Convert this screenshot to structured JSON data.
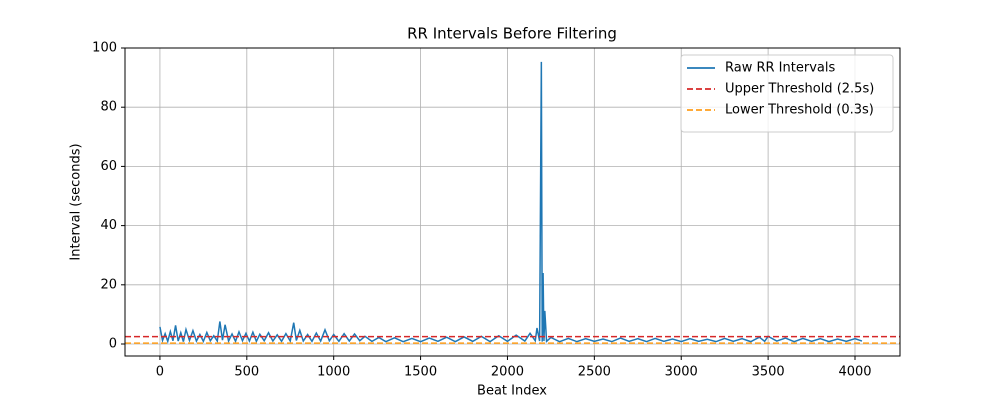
{
  "chart_data": {
    "type": "line",
    "title": "RR Intervals Before Filtering",
    "x_label": "Beat Index",
    "y_label": "Interval (seconds)",
    "x": [
      0,
      15,
      30,
      45,
      60,
      75,
      90,
      105,
      120,
      135,
      150,
      170,
      190,
      210,
      230,
      250,
      270,
      290,
      310,
      330,
      345,
      360,
      375,
      395,
      415,
      435,
      455,
      475,
      495,
      515,
      535,
      555,
      575,
      600,
      625,
      650,
      675,
      700,
      725,
      750,
      770,
      785,
      805,
      825,
      850,
      875,
      900,
      925,
      950,
      975,
      1000,
      1030,
      1060,
      1090,
      1120,
      1150,
      1180,
      1220,
      1260,
      1300,
      1350,
      1400,
      1450,
      1500,
      1550,
      1600,
      1650,
      1700,
      1750,
      1800,
      1850,
      1900,
      1950,
      2000,
      2050,
      2100,
      2130,
      2160,
      2170,
      2185,
      2195,
      2200,
      2205,
      2210,
      2215,
      2225,
      2250,
      2300,
      2350,
      2400,
      2450,
      2500,
      2550,
      2600,
      2650,
      2700,
      2750,
      2800,
      2850,
      2900,
      2950,
      3000,
      3050,
      3100,
      3150,
      3200,
      3250,
      3300,
      3350,
      3400,
      3450,
      3480,
      3500,
      3550,
      3600,
      3650,
      3700,
      3750,
      3800,
      3850,
      3900,
      3950,
      4000,
      4040
    ],
    "series": [
      {
        "name": "Raw RR Intervals",
        "color": "#1f77b4",
        "values": [
          5.8,
          1.2,
          3.5,
          0.9,
          4.2,
          1.1,
          6.3,
          1.0,
          3.8,
          0.8,
          4.9,
          1.2,
          4.5,
          1.0,
          3.2,
          0.9,
          3.9,
          1.1,
          2.8,
          1.0,
          7.6,
          1.3,
          6.5,
          1.0,
          3.4,
          0.9,
          4.1,
          1.1,
          3.6,
          1.0,
          4.0,
          0.9,
          3.3,
          1.1,
          3.8,
          1.0,
          3.1,
          0.9,
          3.5,
          1.0,
          7.2,
          1.2,
          4.6,
          1.0,
          3.2,
          0.9,
          3.7,
          1.0,
          4.8,
          1.1,
          3.2,
          0.9,
          3.5,
          1.0,
          3.4,
          1.1,
          2.6,
          0.9,
          2.2,
          0.8,
          2.1,
          0.8,
          1.9,
          0.8,
          2.0,
          0.9,
          2.3,
          0.8,
          2.4,
          0.9,
          2.6,
          0.8,
          2.8,
          0.9,
          3.0,
          1.0,
          3.6,
          1.1,
          5.4,
          1.0,
          95.3,
          0.8,
          24,
          1.0,
          11.2,
          0.9,
          2.2,
          0.8,
          1.9,
          0.8,
          1.8,
          0.9,
          1.7,
          0.8,
          2.0,
          0.9,
          1.8,
          0.8,
          1.9,
          0.9,
          1.7,
          0.8,
          1.8,
          0.9,
          1.6,
          0.8,
          1.9,
          0.9,
          1.8,
          0.8,
          2.3,
          0.9,
          2.6,
          1.0,
          2.0,
          0.8,
          1.9,
          0.9,
          1.8,
          0.8,
          1.7,
          0.9,
          1.8,
          1.0
        ]
      }
    ],
    "thresholds": [
      {
        "name": "Upper Threshold (2.5s)",
        "color": "#d62728",
        "value": 2.5
      },
      {
        "name": "Lower Threshold (0.3s)",
        "color": "#ff9f1c",
        "value": 0.3
      }
    ],
    "xlim": [
      -201,
      4259
    ],
    "ylim": [
      -4.05,
      100
    ],
    "xticks": [
      0,
      500,
      1000,
      1500,
      2000,
      2500,
      3000,
      3500,
      4000
    ],
    "yticks": [
      0,
      20,
      40,
      60,
      80,
      100
    ],
    "grid": true,
    "legend": "upper right"
  }
}
